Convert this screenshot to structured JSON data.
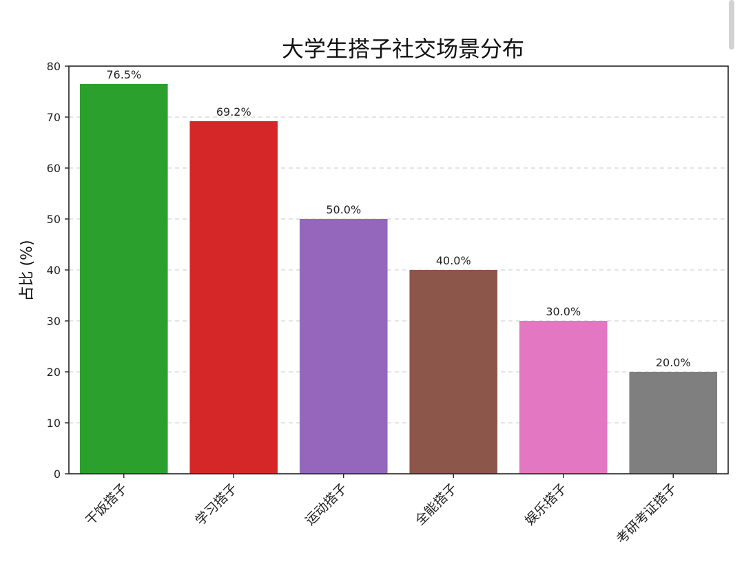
{
  "chart_data": {
    "type": "bar",
    "title": "大学生搭子社交场景分布",
    "xlabel": "",
    "ylabel": "占比 (%)",
    "categories": [
      "干饭搭子",
      "学习搭子",
      "运动搭子",
      "全能搭子",
      "娱乐搭子",
      "考研考证搭子"
    ],
    "values": [
      76.5,
      69.2,
      50.0,
      40.0,
      30.0,
      20.0
    ],
    "value_labels": [
      "76.5%",
      "69.2%",
      "50.0%",
      "40.0%",
      "30.0%",
      "20.0%"
    ],
    "colors": [
      "#2ca02c",
      "#d62728",
      "#9467bd",
      "#8c564b",
      "#e377c2",
      "#7f7f7f"
    ],
    "ylim": [
      0,
      80
    ],
    "yticks": [
      0,
      10,
      20,
      30,
      40,
      50,
      60,
      70,
      80
    ],
    "grid": "y, dashed",
    "legend": "none"
  }
}
